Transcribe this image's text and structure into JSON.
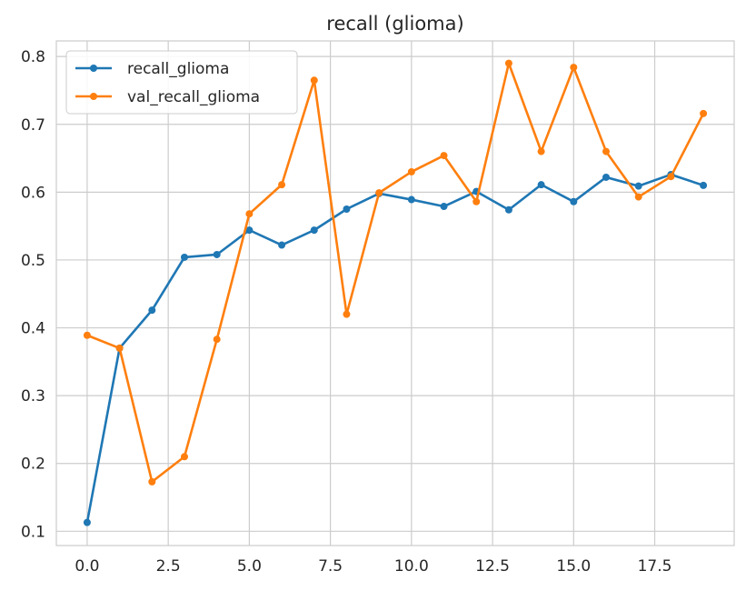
{
  "chart_data": {
    "type": "line",
    "title": "recall (glioma)",
    "xlabel": "",
    "ylabel": "",
    "xlim": [
      -0.95,
      19.95
    ],
    "ylim": [
      0.079,
      0.823
    ],
    "xticks": [
      0.0,
      2.5,
      5.0,
      7.5,
      10.0,
      12.5,
      15.0,
      17.5
    ],
    "xtick_labels": [
      "0.0",
      "2.5",
      "5.0",
      "7.5",
      "10.0",
      "12.5",
      "15.0",
      "17.5"
    ],
    "yticks": [
      0.1,
      0.2,
      0.3,
      0.4,
      0.5,
      0.6,
      0.7,
      0.8
    ],
    "ytick_labels": [
      "0.1",
      "0.2",
      "0.3",
      "0.4",
      "0.5",
      "0.6",
      "0.7",
      "0.8"
    ],
    "grid": true,
    "legend_position": "top-left",
    "x": [
      0,
      1,
      2,
      3,
      4,
      5,
      6,
      7,
      8,
      9,
      10,
      11,
      12,
      13,
      14,
      15,
      16,
      17,
      18,
      19
    ],
    "series": [
      {
        "name": "recall_glioma",
        "color": "#1f77b4",
        "values": [
          0.113,
          0.37,
          0.426,
          0.504,
          0.508,
          0.544,
          0.522,
          0.544,
          0.575,
          0.598,
          0.589,
          0.579,
          0.601,
          0.574,
          0.611,
          0.586,
          0.622,
          0.609,
          0.626,
          0.61
        ]
      },
      {
        "name": "val_recall_glioma",
        "color": "#ff7f0e",
        "values": [
          0.389,
          0.37,
          0.173,
          0.21,
          0.383,
          0.568,
          0.611,
          0.765,
          0.42,
          0.599,
          0.63,
          0.654,
          0.586,
          0.79,
          0.66,
          0.784,
          0.66,
          0.593,
          0.623,
          0.716
        ]
      }
    ]
  }
}
